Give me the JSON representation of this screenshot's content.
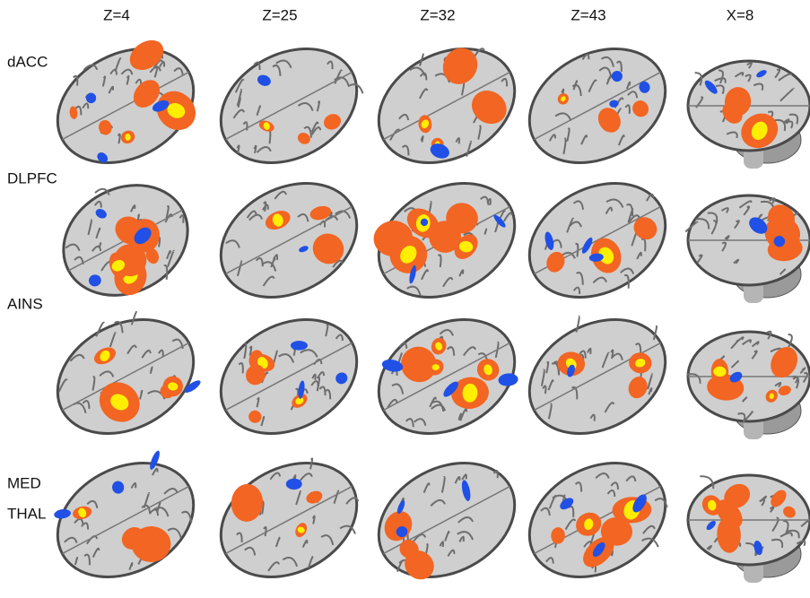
{
  "columns": [
    "Z=4",
    "Z=25",
    "Z=32",
    "Z=43",
    "X=8"
  ],
  "rows": [
    [
      "dACC"
    ],
    [
      "DLPFC"
    ],
    [
      "AINS"
    ],
    [
      "MED",
      "THAL"
    ]
  ]
}
